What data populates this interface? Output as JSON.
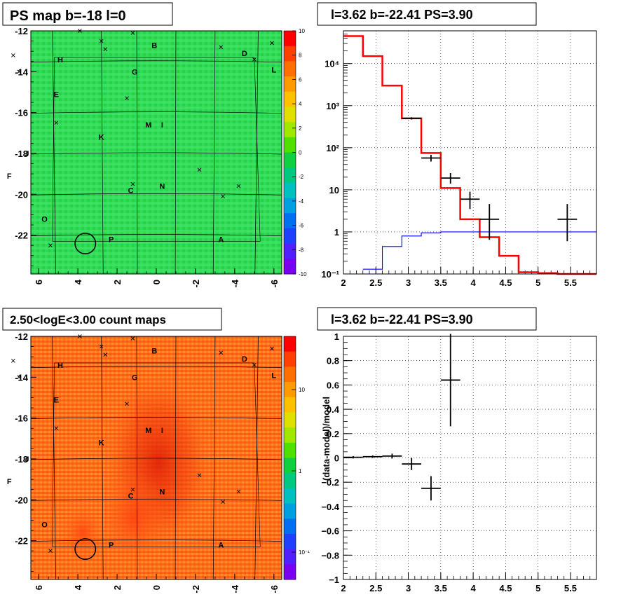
{
  "panels": {
    "ps_map": {
      "title": "PS map b=-18 l=0",
      "y_ticks": [
        "-12",
        "-14",
        "-16",
        "-18",
        "-20",
        "-22"
      ],
      "x_ticks": [
        "6",
        "4",
        "2",
        "0",
        "-2",
        "-4",
        "-6"
      ],
      "z_ticks": [
        "10",
        "8",
        "6",
        "4",
        "2",
        "0",
        "-2",
        "-4",
        "-6",
        "-8",
        "-10"
      ]
    },
    "count_map": {
      "title": "2.50<logE<3.00 count maps",
      "y_ticks": [
        "-12",
        "-14",
        "-16",
        "-18",
        "-20",
        "-22"
      ],
      "x_ticks": [
        "6",
        "4",
        "2",
        "0",
        "-2",
        "-4",
        "-6"
      ],
      "z_ticks": [
        "10",
        "1",
        "10⁻¹"
      ]
    },
    "spectrum": {
      "title": "l=3.62 b=-22.41 PS=3.90"
    },
    "residual": {
      "title": "l=3.62 b=-22.41 PS=3.90"
    }
  },
  "source_labels": [
    {
      "id": "B",
      "l": 0.1,
      "b": -12.7
    },
    {
      "id": "D",
      "l": -4.5,
      "b": -13.1
    },
    {
      "id": "H",
      "l": 4.9,
      "b": -13.4
    },
    {
      "id": "L",
      "l": -6.0,
      "b": -13.9
    },
    {
      "id": "G",
      "l": 1.1,
      "b": -14.0
    },
    {
      "id": "E",
      "l": 5.1,
      "b": -15.1
    },
    {
      "id": "M",
      "l": 0.4,
      "b": -16.6
    },
    {
      "id": "I",
      "l": -0.3,
      "b": -16.6
    },
    {
      "id": "K",
      "l": 2.8,
      "b": -17.2
    },
    {
      "id": "J",
      "l": 6.6,
      "b": -18.0
    },
    {
      "id": "F",
      "l": 7.5,
      "b": -19.1
    },
    {
      "id": "C",
      "l": 1.3,
      "b": -19.8
    },
    {
      "id": "N",
      "l": -0.3,
      "b": -19.6
    },
    {
      "id": "O",
      "l": 5.7,
      "b": -21.2
    },
    {
      "id": "P",
      "l": 2.3,
      "b": -22.2
    },
    {
      "id": "A",
      "l": -3.3,
      "b": -22.2
    }
  ],
  "source_markers": [
    {
      "l": 3.9,
      "b": -12.0
    },
    {
      "l": 1.2,
      "b": -12.1
    },
    {
      "l": 2.8,
      "b": -12.5
    },
    {
      "l": 2.6,
      "b": -12.9
    },
    {
      "l": 7.3,
      "b": -13.2
    },
    {
      "l": -3.3,
      "b": -12.8
    },
    {
      "l": -5.9,
      "b": -12.6
    },
    {
      "l": -5.0,
      "b": -13.4
    },
    {
      "l": 7.0,
      "b": -14.0
    },
    {
      "l": 1.5,
      "b": -15.3
    },
    {
      "l": 5.1,
      "b": -16.5
    },
    {
      "l": -2.2,
      "b": -18.8
    },
    {
      "l": 1.2,
      "b": -19.5
    },
    {
      "l": -4.2,
      "b": -19.6
    },
    {
      "l": -3.4,
      "b": -20.1
    },
    {
      "l": 5.4,
      "b": -22.5
    }
  ],
  "roi_circle": {
    "l": 3.62,
    "b": -22.41,
    "radius_deg": 0.5
  },
  "chart_data": [
    {
      "type": "heatmap",
      "title": "PS map b=-18 l=0",
      "x_range": [
        6.4,
        -6.4
      ],
      "y_range": [
        -23.9,
        -12
      ],
      "z_range": [
        -10,
        10
      ],
      "mean_value": -0.5,
      "colormap": "rainbow"
    },
    {
      "type": "heatmap",
      "title": "2.50<logE<3.00 count maps",
      "x_range": [
        6.4,
        -6.4
      ],
      "y_range": [
        -23.9,
        -12
      ],
      "z_scale": "log",
      "z_range": [
        0.03,
        30
      ],
      "peak": {
        "l": 0,
        "b": -18.5
      },
      "colormap": "rainbow"
    },
    {
      "type": "line",
      "title": "l=3.62 b=-22.41 PS=3.90",
      "y_scale": "log",
      "xlim": [
        2,
        5.9
      ],
      "ylim": [
        0.1,
        60000
      ],
      "x_ticks": [
        2,
        2.5,
        3,
        3.5,
        4,
        4.5,
        5,
        5.5
      ],
      "y_ticks": [
        "10⁻¹",
        "1",
        "10",
        "10²",
        "10³",
        "10⁴"
      ],
      "grid": true,
      "series": [
        {
          "style": "step",
          "color": "#ff0000",
          "edges": [
            2,
            2.3,
            2.6,
            2.9,
            3.2,
            3.5,
            3.8,
            4.1,
            4.4,
            4.7,
            5.0,
            5.3,
            5.6,
            5.9
          ],
          "values": [
            45000,
            15000,
            3000,
            500,
            75,
            11,
            2,
            0.75,
            0.27,
            0.11,
            0.105,
            0.1,
            0.1
          ]
        },
        {
          "style": "step",
          "color": "#0000ff",
          "edges": [
            2.3,
            2.6,
            2.9,
            3.2,
            3.5,
            5.9
          ],
          "values": [
            0.13,
            0.45,
            0.8,
            0.95,
            1.0
          ]
        },
        {
          "style": "points",
          "color": "#000000",
          "points": [
            {
              "x": 3.05,
              "y": 500,
              "xerr": 0.15,
              "ylo": 470,
              "yhi": 530
            },
            {
              "x": 3.35,
              "y": 57,
              "xerr": 0.15,
              "ylo": 47,
              "yhi": 68
            },
            {
              "x": 3.65,
              "y": 19,
              "xerr": 0.15,
              "ylo": 14,
              "yhi": 25
            },
            {
              "x": 3.95,
              "y": 6,
              "xerr": 0.15,
              "ylo": 3.5,
              "yhi": 9
            },
            {
              "x": 4.25,
              "y": 2,
              "xerr": 0.15,
              "ylo": 0.65,
              "yhi": 4.6
            },
            {
              "x": 5.45,
              "y": 2,
              "xerr": 0.15,
              "ylo": 0.6,
              "yhi": 4.6
            }
          ]
        }
      ]
    },
    {
      "type": "scatter",
      "title": "l=3.62 b=-22.41 PS=3.90",
      "ylabel": "(data-model)/model",
      "xlim": [
        2,
        5.9
      ],
      "ylim": [
        -1,
        1
      ],
      "x_ticks": [
        2,
        2.5,
        3,
        3.5,
        4,
        4.5,
        5,
        5.5
      ],
      "y_ticks": [
        1,
        0.8,
        0.6,
        0.4,
        0.2,
        0,
        -0.2,
        -0.4,
        -0.6,
        -0.8,
        -1
      ],
      "grid": true,
      "points": [
        {
          "x": 2.15,
          "y": 0.005,
          "xerr": 0.15,
          "yerr": 0.01
        },
        {
          "x": 2.45,
          "y": 0.01,
          "xerr": 0.15,
          "yerr": 0.01
        },
        {
          "x": 2.75,
          "y": 0.015,
          "xerr": 0.15,
          "yerr": 0.02
        },
        {
          "x": 3.05,
          "y": -0.05,
          "xerr": 0.15,
          "yerr": 0.05
        },
        {
          "x": 3.35,
          "y": -0.25,
          "xerr": 0.15,
          "yerr": 0.1
        },
        {
          "x": 3.65,
          "y": 0.64,
          "xerr": 0.15,
          "yerr": 0.38
        }
      ]
    }
  ]
}
